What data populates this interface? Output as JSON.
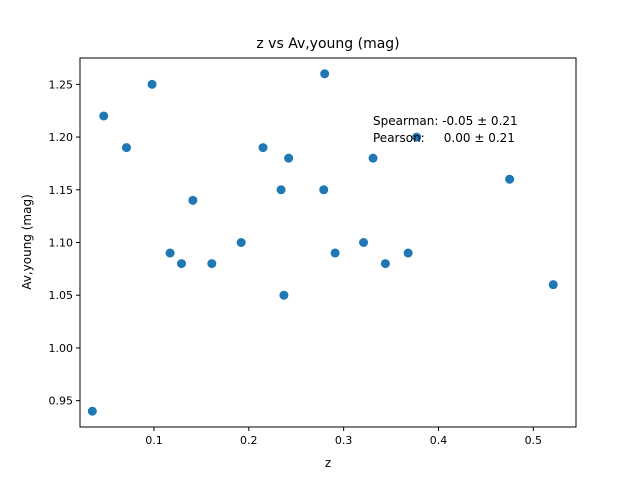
{
  "chart_data": {
    "type": "scatter",
    "title": "z vs Av,young (mag)",
    "xlabel": "z",
    "ylabel": "Av,young (mag)",
    "xlim": [
      0.022,
      0.545
    ],
    "ylim": [
      0.925,
      1.275
    ],
    "xticks": [
      0.1,
      0.2,
      0.3,
      0.4,
      0.5
    ],
    "xtick_labels": [
      "0.1",
      "0.2",
      "0.3",
      "0.4",
      "0.5"
    ],
    "yticks": [
      0.95,
      1.0,
      1.05,
      1.1,
      1.15,
      1.2,
      1.25
    ],
    "ytick_labels": [
      "0.95",
      "1.00",
      "1.05",
      "1.10",
      "1.15",
      "1.20",
      "1.25"
    ],
    "grid": false,
    "marker_color": "#1f77b4",
    "points": [
      {
        "x": 0.035,
        "y": 0.94
      },
      {
        "x": 0.047,
        "y": 1.22
      },
      {
        "x": 0.071,
        "y": 1.19
      },
      {
        "x": 0.098,
        "y": 1.25
      },
      {
        "x": 0.117,
        "y": 1.09
      },
      {
        "x": 0.129,
        "y": 1.08
      },
      {
        "x": 0.141,
        "y": 1.14
      },
      {
        "x": 0.161,
        "y": 1.08
      },
      {
        "x": 0.192,
        "y": 1.1
      },
      {
        "x": 0.215,
        "y": 1.19
      },
      {
        "x": 0.234,
        "y": 1.15
      },
      {
        "x": 0.237,
        "y": 1.05
      },
      {
        "x": 0.242,
        "y": 1.18
      },
      {
        "x": 0.279,
        "y": 1.15
      },
      {
        "x": 0.28,
        "y": 1.26
      },
      {
        "x": 0.291,
        "y": 1.09
      },
      {
        "x": 0.321,
        "y": 1.1
      },
      {
        "x": 0.331,
        "y": 1.18
      },
      {
        "x": 0.344,
        "y": 1.08
      },
      {
        "x": 0.368,
        "y": 1.09
      },
      {
        "x": 0.377,
        "y": 1.2
      },
      {
        "x": 0.475,
        "y": 1.16
      },
      {
        "x": 0.521,
        "y": 1.06
      }
    ],
    "annotations": [
      "Spearman: -0.05 ± 0.21",
      "Pearson:     0.00 ± 0.21"
    ]
  }
}
